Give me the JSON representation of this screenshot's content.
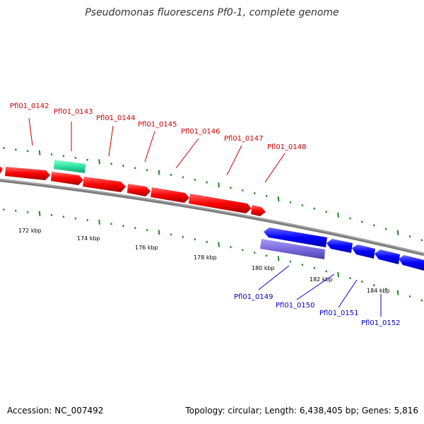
{
  "title": "Pseudomonas fluorescens Pf0-1, complete genome",
  "footer": {
    "accession": "Accession: NC_007492",
    "topology": "Topology: circular; Length: 6,438,405 bp; Genes: 5,816"
  },
  "colors": {
    "forward_gene": "#ff0000",
    "reverse_gene": "#0000ff",
    "forward_feature": "#33e6a0",
    "reverse_feature": "#7f6fe0",
    "backbone": "#8a8a8a",
    "ticks": "#1e8a1e",
    "forward_label": "#cc0000",
    "reverse_label": "#0000cc"
  },
  "kbp_labels": [
    "172 kbp",
    "174 kbp",
    "176 kbp",
    "178 kbp",
    "180 kbp",
    "182 kbp",
    "184 kbp"
  ],
  "forward_genes": [
    "Pfl01_0142",
    "Pfl01_0143",
    "Pfl01_0144",
    "Pfl01_0145",
    "Pfl01_0146",
    "Pfl01_0147",
    "Pfl01_0148"
  ],
  "reverse_genes": [
    "Pfl01_0149",
    "Pfl01_0150",
    "Pfl01_0151",
    "Pfl01_0152"
  ]
}
